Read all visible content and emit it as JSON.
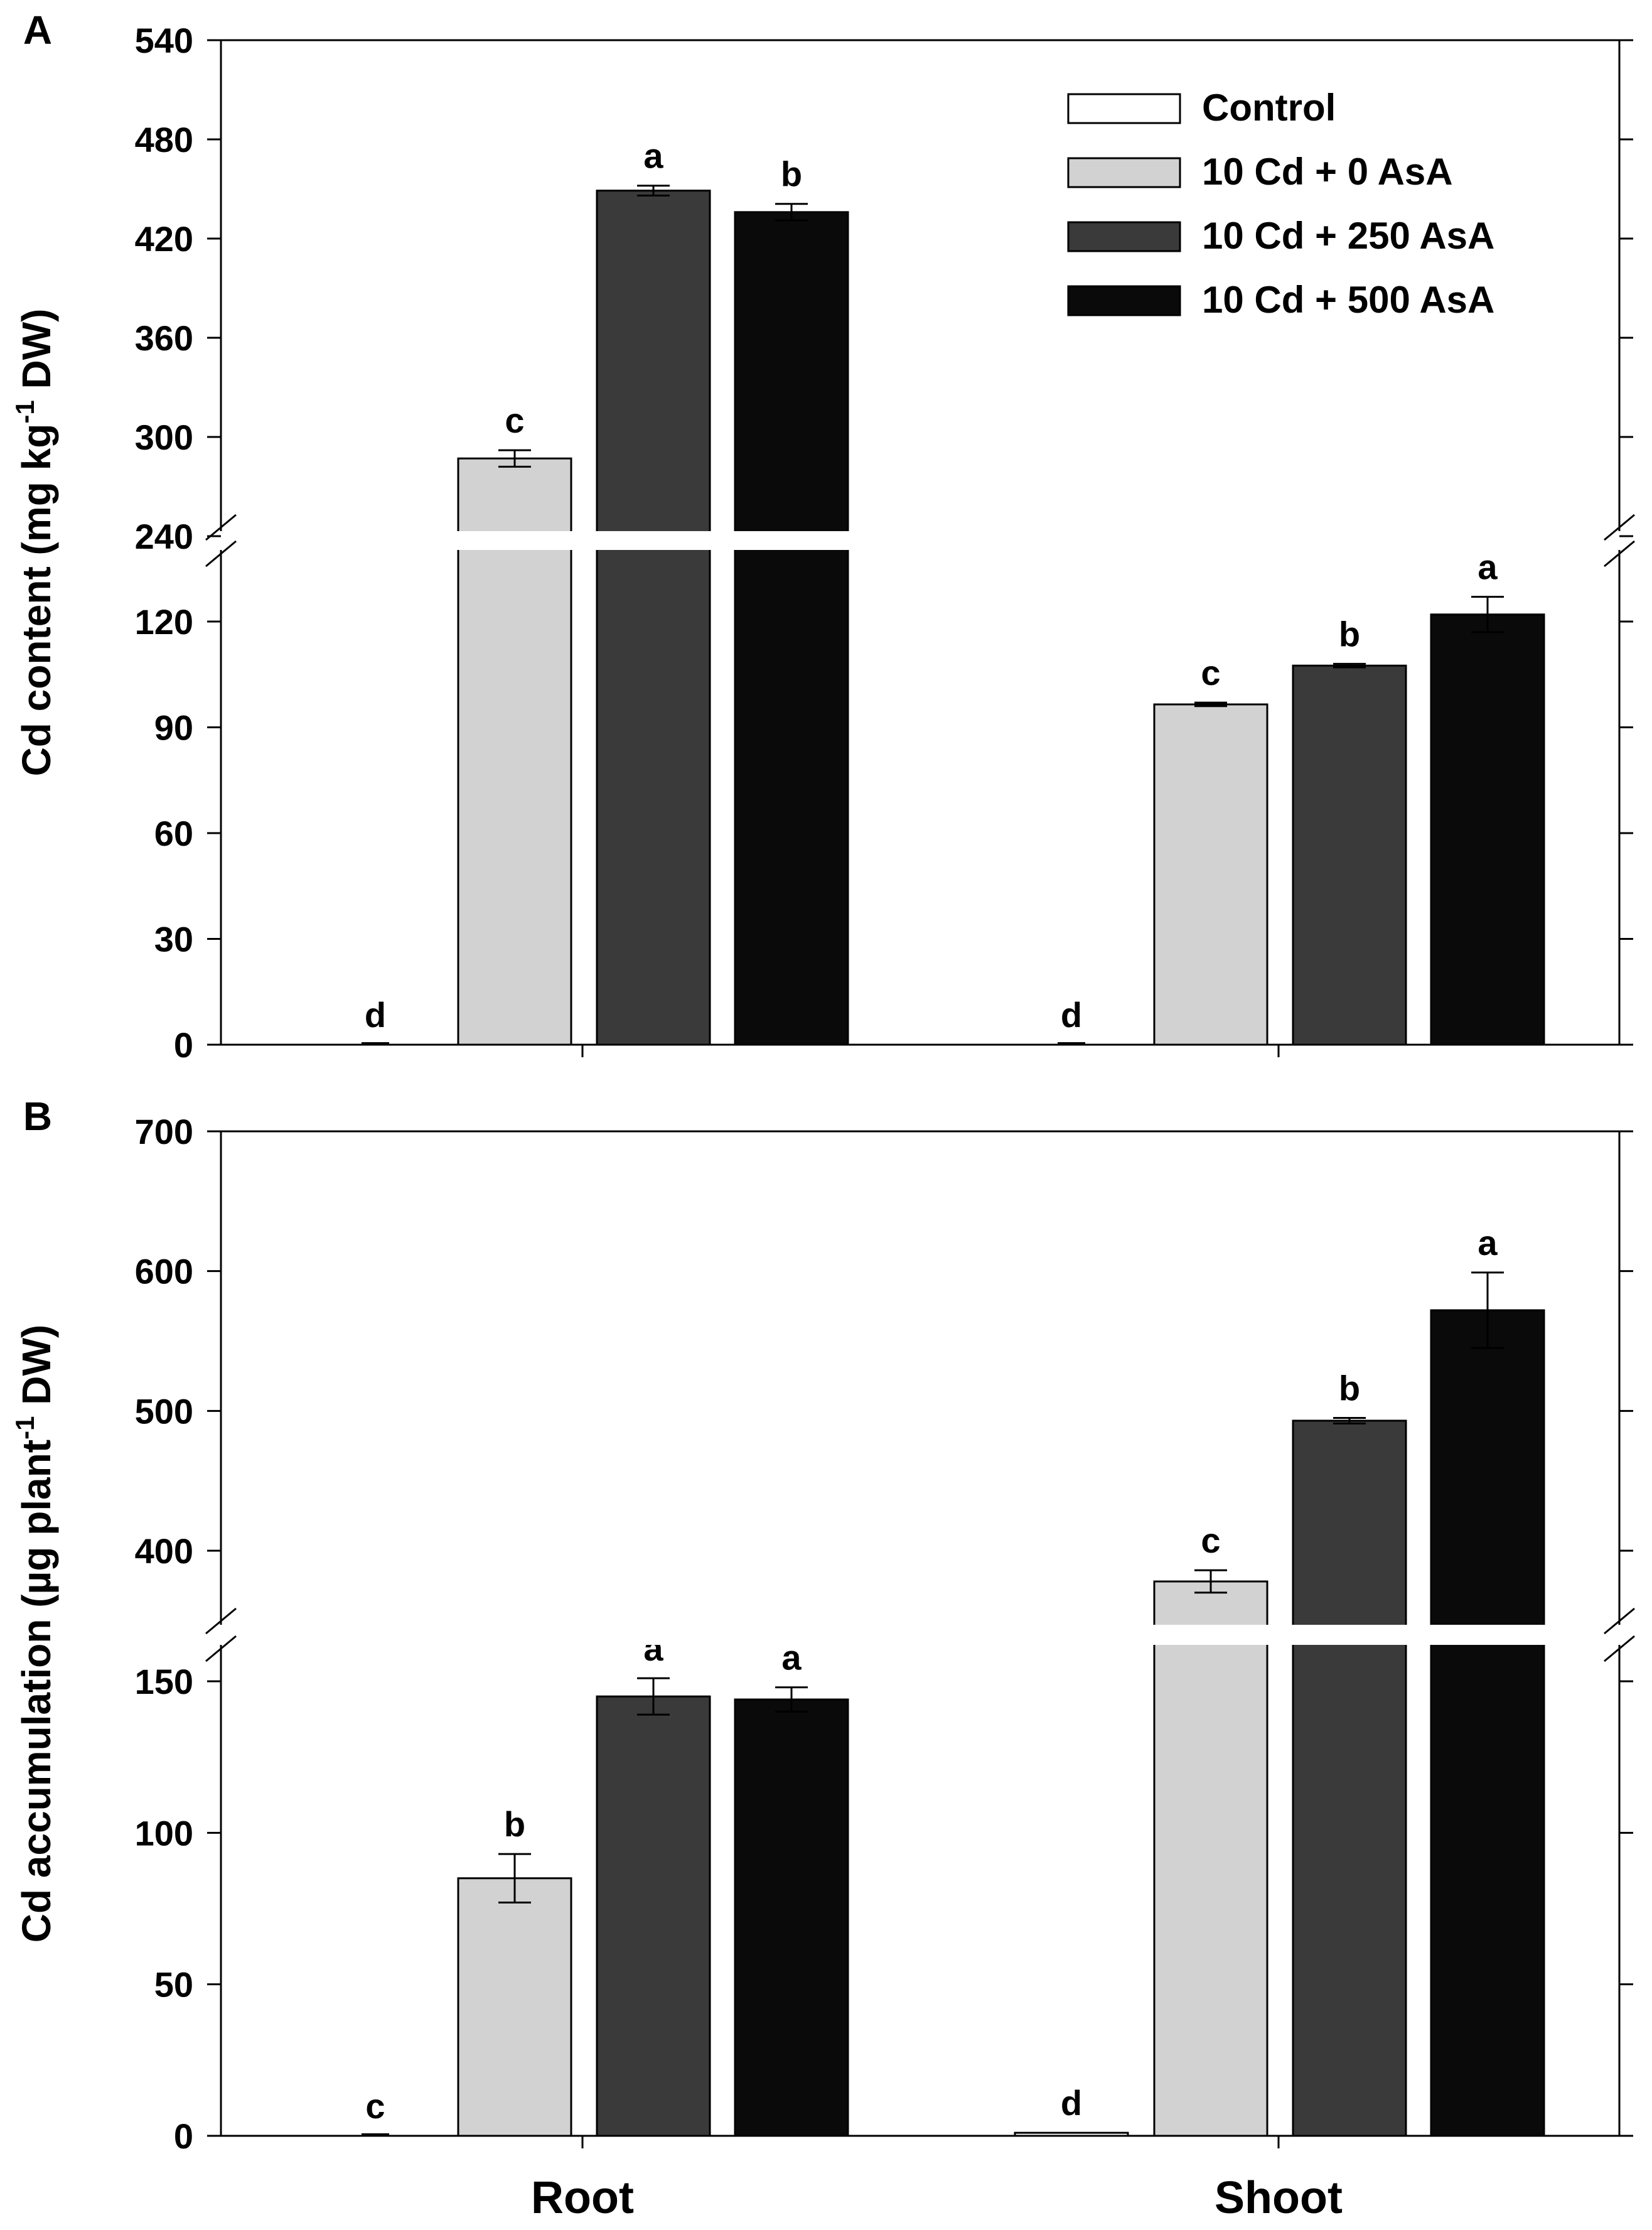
{
  "chart_data": [
    {
      "type": "bar",
      "panel": "A",
      "ylabel": "Cd content (mg kg⁻¹ DW)",
      "ylabel_parts": {
        "main": "Cd content (mg kg",
        "sup": "-1",
        "end": " DW)"
      },
      "categories": [
        "Root",
        "Shoot"
      ],
      "y_break": {
        "lower_max": 138,
        "upper_min": 240
      },
      "lower_ticks": [
        0,
        30,
        60,
        90,
        120
      ],
      "upper_ticks": [
        240,
        300,
        360,
        420,
        480,
        540
      ],
      "ylim": [
        0,
        540
      ],
      "series": [
        {
          "name": "Control",
          "color": "#ffffff",
          "values": [
            0,
            0
          ],
          "errors": [
            0,
            0
          ],
          "letters": [
            "d",
            "d"
          ]
        },
        {
          "name": "10 Cd + 0 AsA",
          "color": "#d2d2d2",
          "values": [
            287,
            96.5
          ],
          "errors": [
            5,
            0.5
          ],
          "letters": [
            "c",
            "c"
          ]
        },
        {
          "name": "10 Cd + 250 AsA",
          "color": "#3a3a3a",
          "values": [
            449,
            107.5
          ],
          "errors": [
            3,
            0.5
          ],
          "letters": [
            "a",
            "b"
          ]
        },
        {
          "name": "10 Cd + 500 AsA",
          "color": "#0a0a0a",
          "values": [
            436,
            122
          ],
          "errors": [
            5,
            5
          ],
          "letters": [
            "b",
            "a"
          ]
        }
      ]
    },
    {
      "type": "bar",
      "panel": "B",
      "ylabel": "Cd accumulation (µg plant⁻¹ DW)",
      "ylabel_parts": {
        "main": "Cd accumulation (µg plant",
        "sup": "-1",
        "end": " DW)"
      },
      "categories": [
        "Root",
        "Shoot"
      ],
      "y_break": {
        "lower_max": 160,
        "upper_min": 357
      },
      "lower_ticks": [
        0,
        50,
        100,
        150
      ],
      "upper_ticks": [
        400,
        500,
        600,
        700
      ],
      "ylim": [
        0,
        700
      ],
      "series": [
        {
          "name": "Control",
          "color": "#ffffff",
          "values": [
            0,
            1
          ],
          "errors": [
            0,
            0
          ],
          "letters": [
            "c",
            "d"
          ]
        },
        {
          "name": "10 Cd + 0 AsA",
          "color": "#d2d2d2",
          "values": [
            85,
            378
          ],
          "errors": [
            8,
            8
          ],
          "letters": [
            "b",
            "c"
          ]
        },
        {
          "name": "10 Cd + 250 AsA",
          "color": "#3a3a3a",
          "values": [
            145,
            493
          ],
          "errors": [
            6,
            2
          ],
          "letters": [
            "a",
            "b"
          ]
        },
        {
          "name": "10 Cd + 500 AsA",
          "color": "#0a0a0a",
          "values": [
            144,
            572
          ],
          "errors": [
            4,
            27
          ],
          "letters": [
            "a",
            "a"
          ]
        }
      ]
    }
  ],
  "legend": [
    {
      "label": "Control",
      "color": "#ffffff"
    },
    {
      "label": "10 Cd + 0 AsA",
      "color": "#d2d2d2"
    },
    {
      "label": "10 Cd + 250 AsA",
      "color": "#3a3a3a"
    },
    {
      "label": "10 Cd + 500 AsA",
      "color": "#0a0a0a"
    }
  ],
  "x_labels": [
    "Root",
    "Shoot"
  ]
}
